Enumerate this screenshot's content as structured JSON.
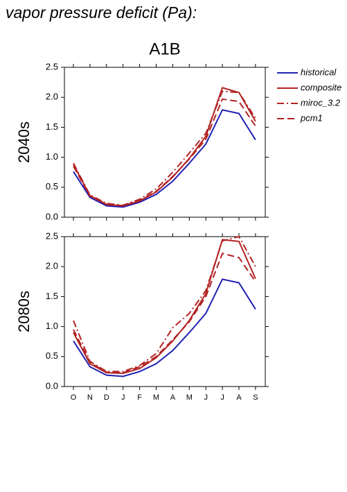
{
  "chart_data": {
    "type": "line",
    "title": "vapor pressure deficit (Pa):",
    "subtitle": "A1B",
    "categories": [
      "O",
      "N",
      "D",
      "J",
      "F",
      "M",
      "A",
      "M",
      "J",
      "J",
      "A",
      "S"
    ],
    "ylim": [
      0,
      2.5
    ],
    "yticks": [
      {
        "value": 0,
        "label": "0.0"
      },
      {
        "value": 0.5,
        "label": "0.5"
      },
      {
        "value": 1,
        "label": "1.0"
      },
      {
        "value": 1.5,
        "label": "1.5"
      },
      {
        "value": 2,
        "label": "2.0"
      },
      {
        "value": 2.5,
        "label": "2.5"
      }
    ],
    "series": [
      {
        "name": "historical",
        "color": "#1f1fb4",
        "style": "solid"
      },
      {
        "name": "composite",
        "color": "#b22222",
        "style": "solid"
      },
      {
        "name": "miroc_3.2",
        "color": "#b22222",
        "style": "dashdot"
      },
      {
        "name": "pcm1",
        "color": "#b22222",
        "style": "dashed"
      }
    ],
    "panels": [
      {
        "label": "2040s",
        "values": [
          [
            0.76,
            0.33,
            0.19,
            0.17,
            0.25,
            0.38,
            0.6,
            0.9,
            1.22,
            1.79,
            1.73,
            1.29
          ],
          [
            0.88,
            0.36,
            0.21,
            0.19,
            0.27,
            0.42,
            0.67,
            0.98,
            1.35,
            2.16,
            2.08,
            1.6
          ],
          [
            0.9,
            0.37,
            0.23,
            0.2,
            0.3,
            0.47,
            0.75,
            1.07,
            1.4,
            2.1,
            2.08,
            1.65
          ],
          [
            0.85,
            0.35,
            0.22,
            0.19,
            0.28,
            0.43,
            0.68,
            0.97,
            1.3,
            1.97,
            1.93,
            1.52
          ]
        ]
      },
      {
        "label": "2080s",
        "values": [
          [
            0.76,
            0.33,
            0.19,
            0.17,
            0.25,
            0.38,
            0.6,
            0.9,
            1.22,
            1.79,
            1.73,
            1.29
          ],
          [
            0.9,
            0.38,
            0.23,
            0.22,
            0.3,
            0.48,
            0.76,
            1.1,
            1.55,
            2.45,
            2.42,
            1.8
          ],
          [
            1.1,
            0.42,
            0.25,
            0.25,
            0.35,
            0.55,
            0.98,
            1.22,
            1.6,
            2.43,
            2.5,
            2.0
          ],
          [
            0.95,
            0.4,
            0.24,
            0.23,
            0.33,
            0.5,
            0.78,
            1.08,
            1.5,
            2.22,
            2.15,
            1.75
          ]
        ]
      }
    ]
  }
}
